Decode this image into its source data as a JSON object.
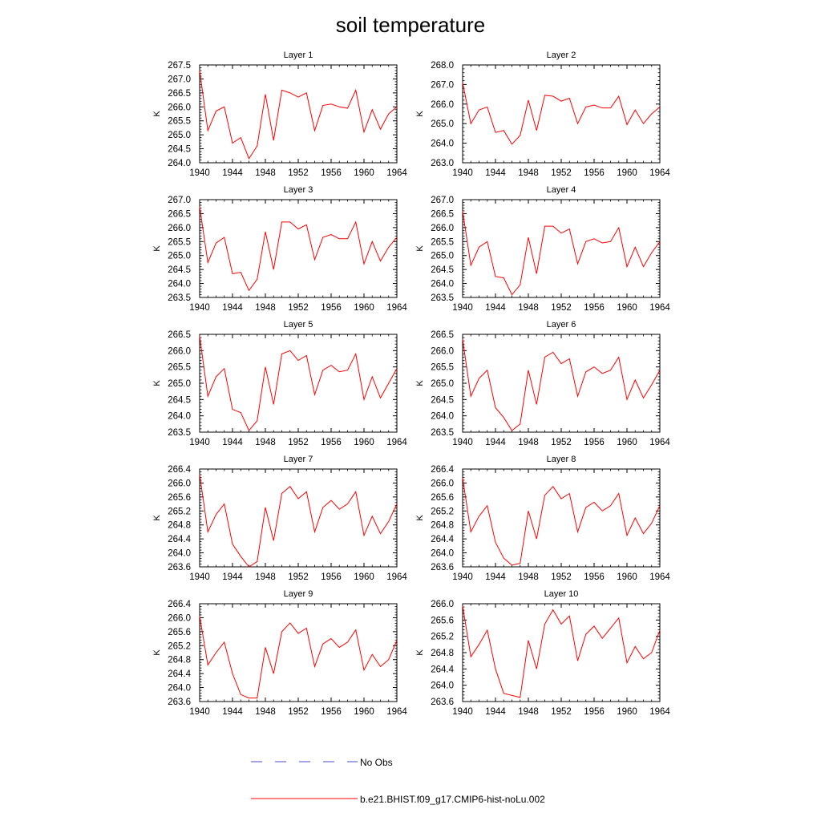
{
  "title": "soil temperature",
  "chart_data": [
    {
      "type": "line",
      "title": "Layer 1",
      "ylabel": "K",
      "xlim": [
        1940,
        1964
      ],
      "ylim": [
        264.0,
        267.5
      ],
      "x": [
        1940,
        1941,
        1942,
        1943,
        1944,
        1945,
        1946,
        1947,
        1948,
        1949,
        1950,
        1951,
        1952,
        1953,
        1954,
        1955,
        1956,
        1957,
        1958,
        1959,
        1960,
        1961,
        1962,
        1963,
        1964
      ],
      "xticks": [
        "1940",
        "1944",
        "1948",
        "1952",
        "1956",
        "1960",
        "1964"
      ],
      "yticks": [
        "264.0",
        "264.5",
        "265.0",
        "265.5",
        "266.0",
        "266.5",
        "267.0",
        "267.5"
      ],
      "series": [
        {
          "name": "b.e21.BHIST.f09_g17.CMIP6-hist-noLu.002",
          "values": [
            267.3,
            265.15,
            265.85,
            266.0,
            264.7,
            264.9,
            264.15,
            264.6,
            266.45,
            264.8,
            266.6,
            266.5,
            266.35,
            266.5,
            265.15,
            266.05,
            266.1,
            266.0,
            265.95,
            266.6,
            265.1,
            265.9,
            265.2,
            265.75,
            266.0
          ]
        }
      ]
    },
    {
      "type": "line",
      "title": "Layer 2",
      "ylabel": "K",
      "xlim": [
        1940,
        1964
      ],
      "ylim": [
        263.0,
        268.0
      ],
      "x": [
        1940,
        1941,
        1942,
        1943,
        1944,
        1945,
        1946,
        1947,
        1948,
        1949,
        1950,
        1951,
        1952,
        1953,
        1954,
        1955,
        1956,
        1957,
        1958,
        1959,
        1960,
        1961,
        1962,
        1963,
        1964
      ],
      "xticks": [
        "1940",
        "1944",
        "1948",
        "1952",
        "1956",
        "1960",
        "1964"
      ],
      "yticks": [
        "263.0",
        "264.0",
        "265.0",
        "266.0",
        "267.0",
        "268.0"
      ],
      "series": [
        {
          "name": "b.e21.BHIST.f09_g17.CMIP6-hist-noLu.002",
          "values": [
            267.1,
            265.0,
            265.7,
            265.85,
            264.55,
            264.65,
            263.95,
            264.4,
            266.2,
            264.65,
            266.45,
            266.4,
            266.15,
            266.3,
            265.0,
            265.85,
            265.95,
            265.8,
            265.8,
            266.4,
            264.95,
            265.7,
            265.0,
            265.5,
            265.85
          ]
        }
      ]
    },
    {
      "type": "line",
      "title": "Layer 3",
      "ylabel": "K",
      "xlim": [
        1940,
        1964
      ],
      "ylim": [
        263.5,
        267.0
      ],
      "x": [
        1940,
        1941,
        1942,
        1943,
        1944,
        1945,
        1946,
        1947,
        1948,
        1949,
        1950,
        1951,
        1952,
        1953,
        1954,
        1955,
        1956,
        1957,
        1958,
        1959,
        1960,
        1961,
        1962,
        1963,
        1964
      ],
      "xticks": [
        "1940",
        "1944",
        "1948",
        "1952",
        "1956",
        "1960",
        "1964"
      ],
      "yticks": [
        "263.5",
        "264.0",
        "264.5",
        "265.0",
        "265.5",
        "266.0",
        "266.5",
        "267.0"
      ],
      "series": [
        {
          "name": "b.e21.BHIST.f09_g17.CMIP6-hist-noLu.002",
          "values": [
            266.75,
            264.75,
            265.45,
            265.65,
            264.35,
            264.4,
            263.75,
            264.15,
            265.85,
            264.5,
            266.2,
            266.2,
            265.95,
            266.1,
            264.85,
            265.65,
            265.75,
            265.6,
            265.6,
            266.2,
            264.7,
            265.5,
            264.8,
            265.3,
            265.65
          ]
        }
      ]
    },
    {
      "type": "line",
      "title": "Layer 4",
      "ylabel": "K",
      "xlim": [
        1940,
        1964
      ],
      "ylim": [
        263.5,
        267.0
      ],
      "x": [
        1940,
        1941,
        1942,
        1943,
        1944,
        1945,
        1946,
        1947,
        1948,
        1949,
        1950,
        1951,
        1952,
        1953,
        1954,
        1955,
        1956,
        1957,
        1958,
        1959,
        1960,
        1961,
        1962,
        1963,
        1964
      ],
      "xticks": [
        "1940",
        "1944",
        "1948",
        "1952",
        "1956",
        "1960",
        "1964"
      ],
      "yticks": [
        "263.5",
        "264.0",
        "264.5",
        "265.0",
        "265.5",
        "266.0",
        "266.5",
        "267.0"
      ],
      "series": [
        {
          "name": "b.e21.BHIST.f09_g17.CMIP6-hist-noLu.002",
          "values": [
            266.6,
            264.65,
            265.3,
            265.5,
            264.25,
            264.2,
            263.6,
            263.95,
            265.65,
            264.35,
            266.05,
            266.05,
            265.8,
            265.95,
            264.7,
            265.5,
            265.6,
            265.45,
            265.5,
            266.0,
            264.6,
            265.3,
            264.6,
            265.1,
            265.5
          ]
        }
      ]
    },
    {
      "type": "line",
      "title": "Layer 5",
      "ylabel": "K",
      "xlim": [
        1940,
        1964
      ],
      "ylim": [
        263.5,
        266.5
      ],
      "x": [
        1940,
        1941,
        1942,
        1943,
        1944,
        1945,
        1946,
        1947,
        1948,
        1949,
        1950,
        1951,
        1952,
        1953,
        1954,
        1955,
        1956,
        1957,
        1958,
        1959,
        1960,
        1961,
        1962,
        1963,
        1964
      ],
      "xticks": [
        "1940",
        "1944",
        "1948",
        "1952",
        "1956",
        "1960",
        "1964"
      ],
      "yticks": [
        "263.5",
        "264.0",
        "264.5",
        "265.0",
        "265.5",
        "266.0",
        "266.5"
      ],
      "series": [
        {
          "name": "b.e21.BHIST.f09_g17.CMIP6-hist-noLu.002",
          "values": [
            266.45,
            264.6,
            265.2,
            265.45,
            264.2,
            264.1,
            263.55,
            263.85,
            265.5,
            264.35,
            265.9,
            266.0,
            265.7,
            265.85,
            264.65,
            265.4,
            265.55,
            265.35,
            265.4,
            265.9,
            264.5,
            265.2,
            264.55,
            265.0,
            265.45
          ]
        }
      ]
    },
    {
      "type": "line",
      "title": "Layer 6",
      "ylabel": "K",
      "xlim": [
        1940,
        1964
      ],
      "ylim": [
        263.5,
        266.5
      ],
      "x": [
        1940,
        1941,
        1942,
        1943,
        1944,
        1945,
        1946,
        1947,
        1948,
        1949,
        1950,
        1951,
        1952,
        1953,
        1954,
        1955,
        1956,
        1957,
        1958,
        1959,
        1960,
        1961,
        1962,
        1963,
        1964
      ],
      "xticks": [
        "1940",
        "1944",
        "1948",
        "1952",
        "1956",
        "1960",
        "1964"
      ],
      "yticks": [
        "263.5",
        "264.0",
        "264.5",
        "265.0",
        "265.5",
        "266.0",
        "266.5"
      ],
      "series": [
        {
          "name": "b.e21.BHIST.f09_g17.CMIP6-hist-noLu.002",
          "values": [
            266.35,
            264.6,
            265.15,
            265.4,
            264.25,
            263.95,
            263.55,
            263.75,
            265.4,
            264.35,
            265.8,
            265.95,
            265.6,
            265.75,
            264.6,
            265.35,
            265.5,
            265.3,
            265.4,
            265.8,
            264.5,
            265.1,
            264.55,
            264.95,
            265.4
          ]
        }
      ]
    },
    {
      "type": "line",
      "title": "Layer 7",
      "ylabel": "K",
      "xlim": [
        1940,
        1964
      ],
      "ylim": [
        263.6,
        266.4
      ],
      "x": [
        1940,
        1941,
        1942,
        1943,
        1944,
        1945,
        1946,
        1947,
        1948,
        1949,
        1950,
        1951,
        1952,
        1953,
        1954,
        1955,
        1956,
        1957,
        1958,
        1959,
        1960,
        1961,
        1962,
        1963,
        1964
      ],
      "xticks": [
        "1940",
        "1944",
        "1948",
        "1952",
        "1956",
        "1960",
        "1964"
      ],
      "yticks": [
        "263.6",
        "264.0",
        "264.4",
        "264.8",
        "265.2",
        "265.6",
        "266.0",
        "266.4"
      ],
      "series": [
        {
          "name": "b.e21.BHIST.f09_g17.CMIP6-hist-noLu.002",
          "values": [
            266.25,
            264.6,
            265.1,
            265.4,
            264.25,
            263.9,
            263.6,
            263.75,
            265.3,
            264.35,
            265.7,
            265.9,
            265.55,
            265.75,
            264.6,
            265.3,
            265.5,
            265.25,
            265.4,
            265.75,
            264.5,
            265.05,
            264.55,
            264.9,
            265.4
          ]
        }
      ]
    },
    {
      "type": "line",
      "title": "Layer 8",
      "ylabel": "K",
      "xlim": [
        1940,
        1964
      ],
      "ylim": [
        263.6,
        266.4
      ],
      "x": [
        1940,
        1941,
        1942,
        1943,
        1944,
        1945,
        1946,
        1947,
        1948,
        1949,
        1950,
        1951,
        1952,
        1953,
        1954,
        1955,
        1956,
        1957,
        1958,
        1959,
        1960,
        1961,
        1962,
        1963,
        1964
      ],
      "xticks": [
        "1940",
        "1944",
        "1948",
        "1952",
        "1956",
        "1960",
        "1964"
      ],
      "yticks": [
        "263.6",
        "264.0",
        "264.4",
        "264.8",
        "265.2",
        "265.6",
        "266.0",
        "266.4"
      ],
      "series": [
        {
          "name": "b.e21.BHIST.f09_g17.CMIP6-hist-noLu.002",
          "values": [
            266.15,
            264.6,
            265.05,
            265.35,
            264.3,
            263.85,
            263.65,
            263.7,
            265.2,
            264.4,
            265.65,
            265.9,
            265.55,
            265.7,
            264.6,
            265.3,
            265.45,
            265.2,
            265.35,
            265.7,
            264.5,
            265.0,
            264.55,
            264.85,
            265.35
          ]
        }
      ]
    },
    {
      "type": "line",
      "title": "Layer 9",
      "ylabel": "K",
      "xlim": [
        1940,
        1964
      ],
      "ylim": [
        263.6,
        266.4
      ],
      "x": [
        1940,
        1941,
        1942,
        1943,
        1944,
        1945,
        1946,
        1947,
        1948,
        1949,
        1950,
        1951,
        1952,
        1953,
        1954,
        1955,
        1956,
        1957,
        1958,
        1959,
        1960,
        1961,
        1962,
        1963,
        1964
      ],
      "xticks": [
        "1940",
        "1944",
        "1948",
        "1952",
        "1956",
        "1960",
        "1964"
      ],
      "yticks": [
        "263.6",
        "264.0",
        "264.4",
        "264.8",
        "265.2",
        "265.6",
        "266.0",
        "266.4"
      ],
      "series": [
        {
          "name": "b.e21.BHIST.f09_g17.CMIP6-hist-noLu.002",
          "values": [
            266.05,
            264.65,
            265.0,
            265.3,
            264.4,
            263.8,
            263.7,
            263.7,
            265.15,
            264.4,
            265.6,
            265.85,
            265.55,
            265.7,
            264.6,
            265.25,
            265.4,
            265.15,
            265.3,
            265.65,
            264.5,
            264.95,
            264.6,
            264.8,
            265.35
          ]
        }
      ]
    },
    {
      "type": "line",
      "title": "Layer 10",
      "ylabel": "K",
      "xlim": [
        1940,
        1964
      ],
      "ylim": [
        263.6,
        266.0
      ],
      "x": [
        1940,
        1941,
        1942,
        1943,
        1944,
        1945,
        1946,
        1947,
        1948,
        1949,
        1950,
        1951,
        1952,
        1953,
        1954,
        1955,
        1956,
        1957,
        1958,
        1959,
        1960,
        1961,
        1962,
        1963,
        1964
      ],
      "xticks": [
        "1940",
        "1944",
        "1948",
        "1952",
        "1956",
        "1960",
        "1964"
      ],
      "yticks": [
        "263.6",
        "264.0",
        "264.4",
        "264.8",
        "265.2",
        "265.6",
        "266.0"
      ],
      "series": [
        {
          "name": "b.e21.BHIST.f09_g17.CMIP6-hist-noLu.002",
          "values": [
            265.95,
            264.7,
            265.0,
            265.35,
            264.4,
            263.8,
            263.75,
            263.7,
            265.1,
            264.4,
            265.5,
            265.85,
            265.5,
            265.7,
            264.6,
            265.25,
            265.45,
            265.15,
            265.4,
            265.65,
            264.55,
            264.95,
            264.65,
            264.8,
            265.35
          ]
        }
      ]
    }
  ],
  "legend": {
    "items": [
      {
        "label": "No Obs",
        "color": "#4a4ad0",
        "style": "dashed"
      },
      {
        "label": "b.e21.BHIST.f09_g17.CMIP6-hist-noLu.002",
        "color": "#ff0000",
        "style": "solid"
      }
    ]
  }
}
